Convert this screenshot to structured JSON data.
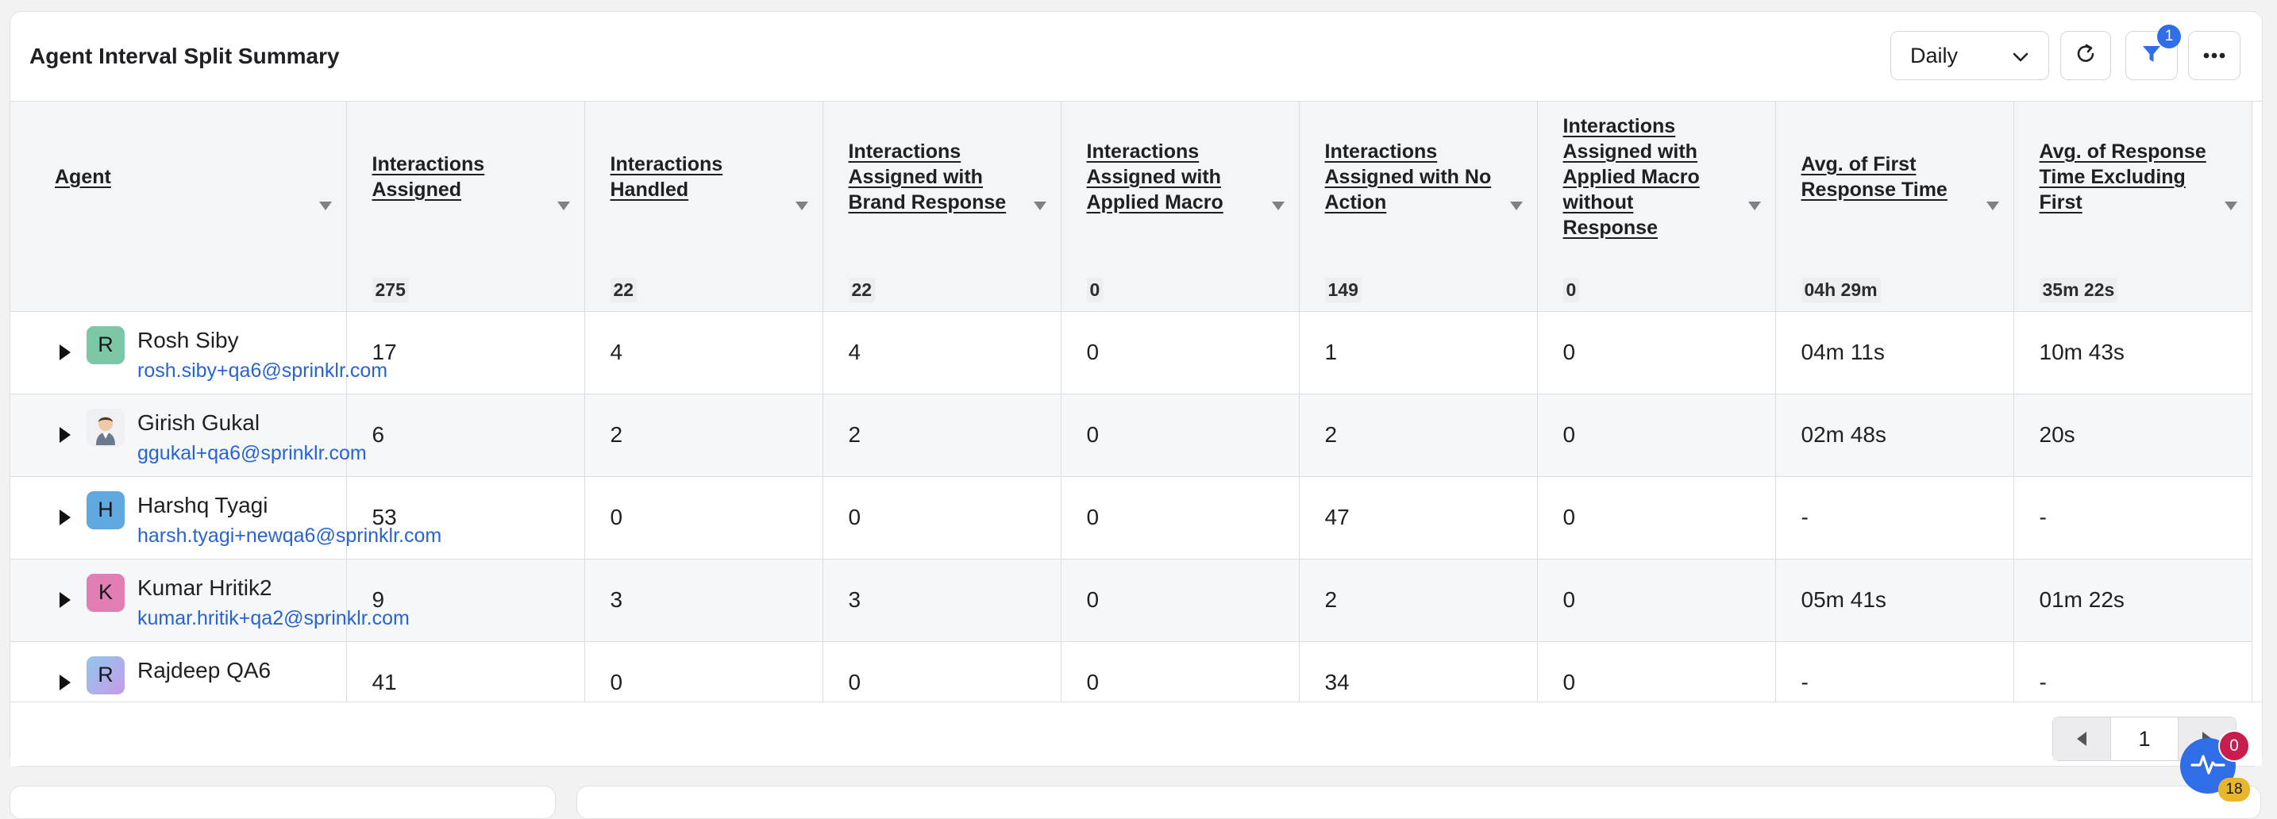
{
  "widget": {
    "title": "Agent Interval Split Summary",
    "interval_select": "Daily",
    "filter_badge_count": "1"
  },
  "table": {
    "columns": [
      {
        "label": "Agent",
        "total": ""
      },
      {
        "label": "Interactions Assigned",
        "total": "275"
      },
      {
        "label": "Interactions Handled",
        "total": "22"
      },
      {
        "label": "Interactions Assigned with Brand Response",
        "total": "22"
      },
      {
        "label": "Interactions Assigned with Applied Macro",
        "total": "0"
      },
      {
        "label": "Interactions Assigned with No Action",
        "total": "149"
      },
      {
        "label": "Interactions Assigned with Applied Macro without Response",
        "total": "0"
      },
      {
        "label": "Avg. of First Response Time",
        "total": "04h 29m"
      },
      {
        "label": "Avg. of Response Time Excluding First",
        "total": "35m 22s"
      }
    ],
    "rows": [
      {
        "name": "Rosh Siby",
        "email": "rosh.siby+qa6@sprinklr.com",
        "avatar": "R",
        "avatar_color": "#7cc7a6",
        "cells": [
          "17",
          "4",
          "4",
          "0",
          "1",
          "0",
          "04m 11s",
          "10m 43s"
        ]
      },
      {
        "name": "Girish Gukal",
        "email": "ggukal+qa6@sprinklr.com",
        "avatar": "",
        "avatar_color": "#f3f4f6",
        "cells": [
          "6",
          "2",
          "2",
          "0",
          "2",
          "0",
          "02m 48s",
          "20s"
        ]
      },
      {
        "name": "Harshq Tyagi",
        "email": "harsh.tyagi+newqa6@sprinklr.com",
        "avatar": "H",
        "avatar_color": "#5fa8e0",
        "cells": [
          "53",
          "0",
          "0",
          "0",
          "47",
          "0",
          "-",
          "-"
        ]
      },
      {
        "name": "Kumar Hritik2",
        "email": "kumar.hritik+qa2@sprinklr.com",
        "avatar": "K",
        "avatar_color": "#e27eb4",
        "cells": [
          "9",
          "3",
          "3",
          "0",
          "2",
          "0",
          "05m 41s",
          "01m 22s"
        ]
      },
      {
        "name": "Rajdeep QA6",
        "email": "",
        "avatar": "R",
        "avatar_color": "#b59ee8",
        "cells": [
          "41",
          "0",
          "0",
          "0",
          "34",
          "0",
          "-",
          "-"
        ]
      }
    ]
  },
  "pagination": {
    "current_page": "1"
  },
  "floating": {
    "red_badge": "0",
    "yellow_badge": "18"
  }
}
